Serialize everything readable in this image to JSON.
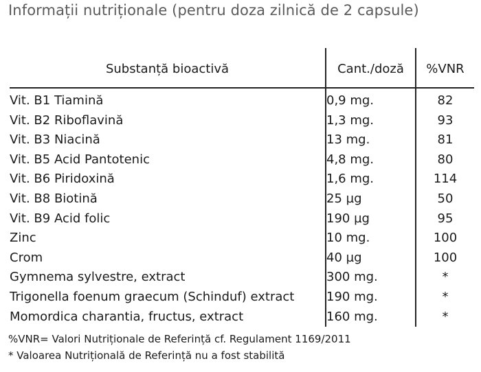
{
  "title": "Informații nutriționale (pentru doza zilnică de 2 capsule)",
  "table": {
    "headers": {
      "substance": "Substanță bioactivă",
      "amount": "Cant./doză",
      "vnr": "%VNR"
    },
    "rows": [
      {
        "name": "Vit. B1 Tiamină",
        "amount": "0,9 mg.",
        "vnr": "82"
      },
      {
        "name": "Vit. B2 Riboflavină",
        "amount": "1,3 mg.",
        "vnr": "93"
      },
      {
        "name": "Vit. B3 Niacină",
        "amount": "13 mg.",
        "vnr": "81"
      },
      {
        "name": "Vit. B5 Acid Pantotenic",
        "amount": "4,8 mg.",
        "vnr": "80"
      },
      {
        "name": "Vit. B6 Piridoxină",
        "amount": "1,6 mg.",
        "vnr": "114"
      },
      {
        "name": "Vit. B8 Biotină",
        "amount": "25 µg",
        "vnr": "50"
      },
      {
        "name": "Vit. B9 Acid folic",
        "amount": "190 µg",
        "vnr": "95"
      },
      {
        "name": "Zinc",
        "amount": "10 mg.",
        "vnr": "100"
      },
      {
        "name": "Crom",
        "amount": "40 µg",
        "vnr": "100"
      },
      {
        "name": "Gymnema sylvestre, extract",
        "amount": "300 mg.",
        "vnr": "*"
      },
      {
        "name": "Trigonella foenum graecum (Schinduf) extract",
        "amount": "190 mg.",
        "vnr": "*"
      },
      {
        "name": "Momordica charantia, fructus, extract",
        "amount": "160 mg.",
        "vnr": "*"
      }
    ]
  },
  "footnotes": {
    "vnr_definition": "%VNR= Valori Nutriționale de Referință cf. Regulament 1169/2011",
    "asterisk_note": "* Valoarea Nutrițională de Referință nu a fost stabilită"
  }
}
